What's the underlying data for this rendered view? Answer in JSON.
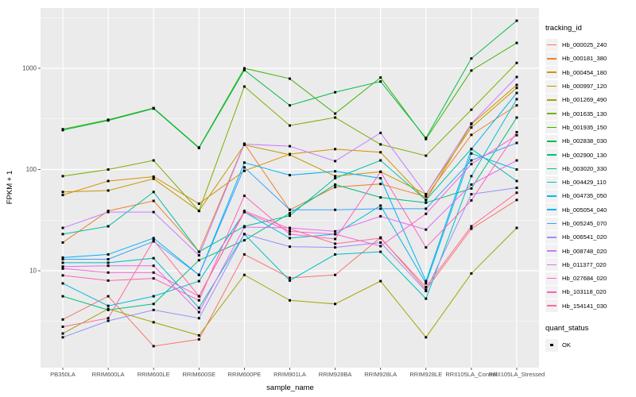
{
  "colors": {
    "panel_bg": "#EBEBEB",
    "grid": "#FFFFFF",
    "tick_label": "#4D4D4D",
    "tick_mark": "#333333",
    "axis_title": "#000000",
    "legend_key_bg": "#F2F2F2",
    "point": "#000000"
  },
  "chart_data": {
    "type": "line",
    "title": "",
    "xlabel": "sample_name",
    "ylabel": "FPKM + 1",
    "y_scale": "log10",
    "grid": true,
    "legend_position": "right",
    "y_ticks": [
      "10",
      "100",
      "1000"
    ],
    "y_tick_values": [
      10,
      100,
      1000
    ],
    "y_minor_values": [
      3.162,
      31.62,
      316.2,
      3162
    ],
    "ylim": [
      1.1,
      3945
    ],
    "categories": [
      "PB350LA",
      "RRIM600LA",
      "RRIM600LE",
      "RRIM600SE",
      "RRIM600PE",
      "RRIM901LA",
      "RRIM928BA",
      "RRIM928LA",
      "RRIM928LE",
      "RRII105LA_Control",
      "RRII105LA_Stressed"
    ],
    "series": [
      {
        "name": "Hb_000025_240",
        "color": "#F8766D",
        "values": [
          3.3,
          5.6,
          1.8,
          2.1,
          14.5,
          8.5,
          9.1,
          21.3,
          6.5,
          26,
          50
        ]
      },
      {
        "name": "Hb_000181_380",
        "color": "#EA8331",
        "values": [
          19,
          39,
          49,
          15.4,
          180,
          40,
          67,
          72,
          54,
          220,
          430
        ]
      },
      {
        "name": "Hb_000454_180",
        "color": "#D89000",
        "values": [
          56,
          77,
          85,
          46,
          97,
          142,
          159,
          148,
          50,
          280,
          685
        ]
      },
      {
        "name": "Hb_000997_120",
        "color": "#C09B00",
        "values": [
          60,
          62,
          81,
          39,
          175,
          140,
          86,
          95,
          57,
          260,
          640
        ]
      },
      {
        "name": "Hb_001269_490",
        "color": "#A3A500",
        "values": [
          2.4,
          4.2,
          3.1,
          2.3,
          9.1,
          5.1,
          4.7,
          7.9,
          2.2,
          9.4,
          26.5
        ]
      },
      {
        "name": "Hb_001635_130",
        "color": "#7CAE00",
        "values": [
          86,
          100,
          123,
          39,
          660,
          272,
          326,
          177,
          137,
          390,
          1130
        ]
      },
      {
        "name": "Hb_001935_150",
        "color": "#39B600",
        "values": [
          250,
          310,
          405,
          165,
          1000,
          790,
          357,
          810,
          200,
          950,
          1780
        ]
      },
      {
        "name": "Hb_002838_030",
        "color": "#00BB4E",
        "values": [
          245,
          305,
          400,
          163,
          960,
          430,
          580,
          740,
          205,
          1250,
          2950
        ]
      },
      {
        "name": "Hb_002900_130",
        "color": "#00BF7D",
        "values": [
          5.6,
          4.1,
          4.7,
          12.7,
          20,
          37,
          71,
          53,
          47,
          65,
          326
        ]
      },
      {
        "name": "Hb_003020_330",
        "color": "#00C1A3",
        "values": [
          23,
          27.5,
          60,
          15.4,
          27.5,
          35,
          82,
          123,
          50,
          160,
          77
        ]
      },
      {
        "name": "Hb_004429_110",
        "color": "#00BFC4",
        "values": [
          12,
          12,
          13.3,
          4.3,
          23,
          8,
          14.5,
          15.4,
          5.3,
          86,
          495
        ]
      },
      {
        "name": "Hb_004735_050",
        "color": "#00BAE0",
        "values": [
          7.5,
          4.5,
          5.6,
          7.9,
          38,
          21,
          23,
          44,
          7.5,
          144,
          100
        ]
      },
      {
        "name": "Hb_005054_040",
        "color": "#00B0F6",
        "values": [
          13.5,
          14.5,
          21,
          9.1,
          117,
          88,
          96,
          82,
          7.9,
          159,
          570
        ]
      },
      {
        "name": "Hb_005245_070",
        "color": "#35A2FF",
        "values": [
          13,
          13,
          19.5,
          9.1,
          105,
          40,
          40,
          41,
          41,
          123,
          183
        ]
      },
      {
        "name": "Hb_006541_020",
        "color": "#9590FF",
        "values": [
          2.2,
          3.2,
          4.1,
          3.4,
          23,
          17.3,
          17,
          19,
          6.3,
          57,
          66
        ]
      },
      {
        "name": "Hb_008748_020",
        "color": "#C77CFF",
        "values": [
          26.5,
          38,
          38,
          14.2,
          178,
          170,
          121,
          230,
          57,
          285,
          820
        ]
      },
      {
        "name": "Hb_011377_020",
        "color": "#E76BF3",
        "values": [
          11,
          11.2,
          11.2,
          3.9,
          27,
          26.5,
          24.5,
          34.5,
          25.5,
          71,
          123
        ]
      },
      {
        "name": "Hb_027684_020",
        "color": "#FA62DB",
        "values": [
          10.5,
          9.6,
          9.6,
          5.6,
          38,
          24.5,
          23,
          17.5,
          36.5,
          113,
          218
        ]
      },
      {
        "name": "Hb_103118_020",
        "color": "#FF62BC",
        "values": [
          9,
          8,
          8.4,
          5.1,
          55,
          23,
          20.6,
          95,
          17,
          49.5,
          234
        ]
      },
      {
        "name": "Hb_154141_030",
        "color": "#FF6A98",
        "values": [
          2.8,
          3.4,
          20,
          5.6,
          39,
          26,
          18.5,
          21,
          6.9,
          27.5,
          59
        ]
      }
    ],
    "legend": {
      "title": "tracking_id"
    },
    "legend2": {
      "title": "quant_status",
      "items": [
        "OK"
      ],
      "marker_color": "#000000"
    }
  }
}
